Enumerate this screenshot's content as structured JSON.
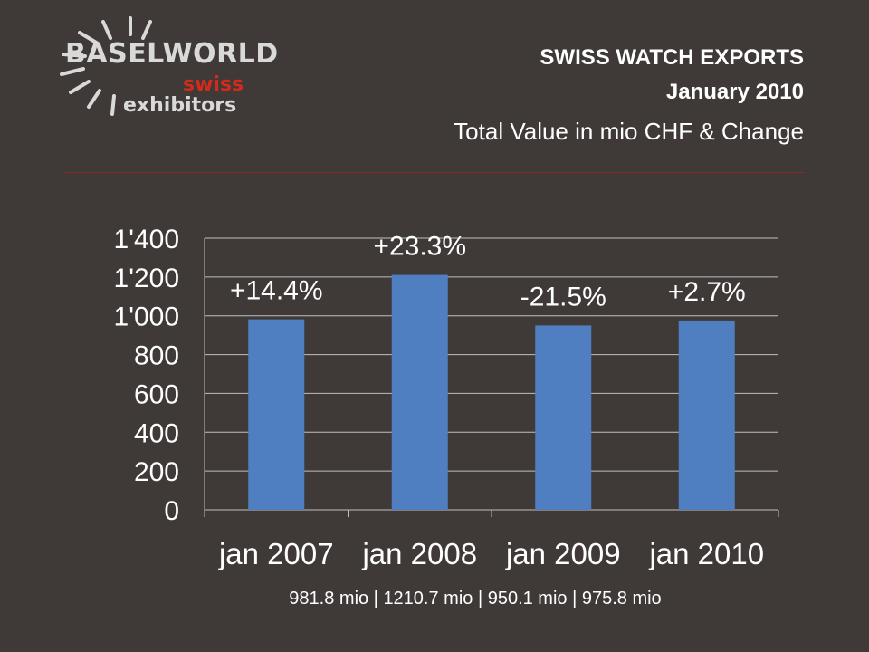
{
  "logo": {
    "brand": "BASELWORLD",
    "line2": "swiss",
    "line3": "exhibitors"
  },
  "header": {
    "title": "SWISS WATCH EXPORTS",
    "subtitle": "January 2010",
    "description": "Total Value in mio CHF & Change"
  },
  "colors": {
    "background": "#3f3a37",
    "bar": "#4f7fc0",
    "grid": "#bfbfbf",
    "text": "#ffffff",
    "accent": "#d32a1c"
  },
  "chart_data": {
    "type": "bar",
    "categories": [
      "jan 2007",
      "jan 2008",
      "jan 2009",
      "jan 2010"
    ],
    "values": [
      981.8,
      1210.7,
      950.1,
      975.8
    ],
    "data_labels": [
      "+14.4%",
      "+23.3%",
      "-21.5%",
      "+2.7%"
    ],
    "ylim": [
      0,
      1400
    ],
    "yticks": [
      0,
      200,
      400,
      600,
      800,
      1000,
      1200,
      1400
    ],
    "ytick_labels": [
      "0",
      "200",
      "400",
      "600",
      "800",
      "1'000",
      "1'200",
      "1'400"
    ],
    "grid": true,
    "legend": "none",
    "xlabel": "",
    "ylabel": ""
  },
  "footnote": "981.8 mio  |  1210.7 mio  |   950.1 mio  |   975.8 mio"
}
